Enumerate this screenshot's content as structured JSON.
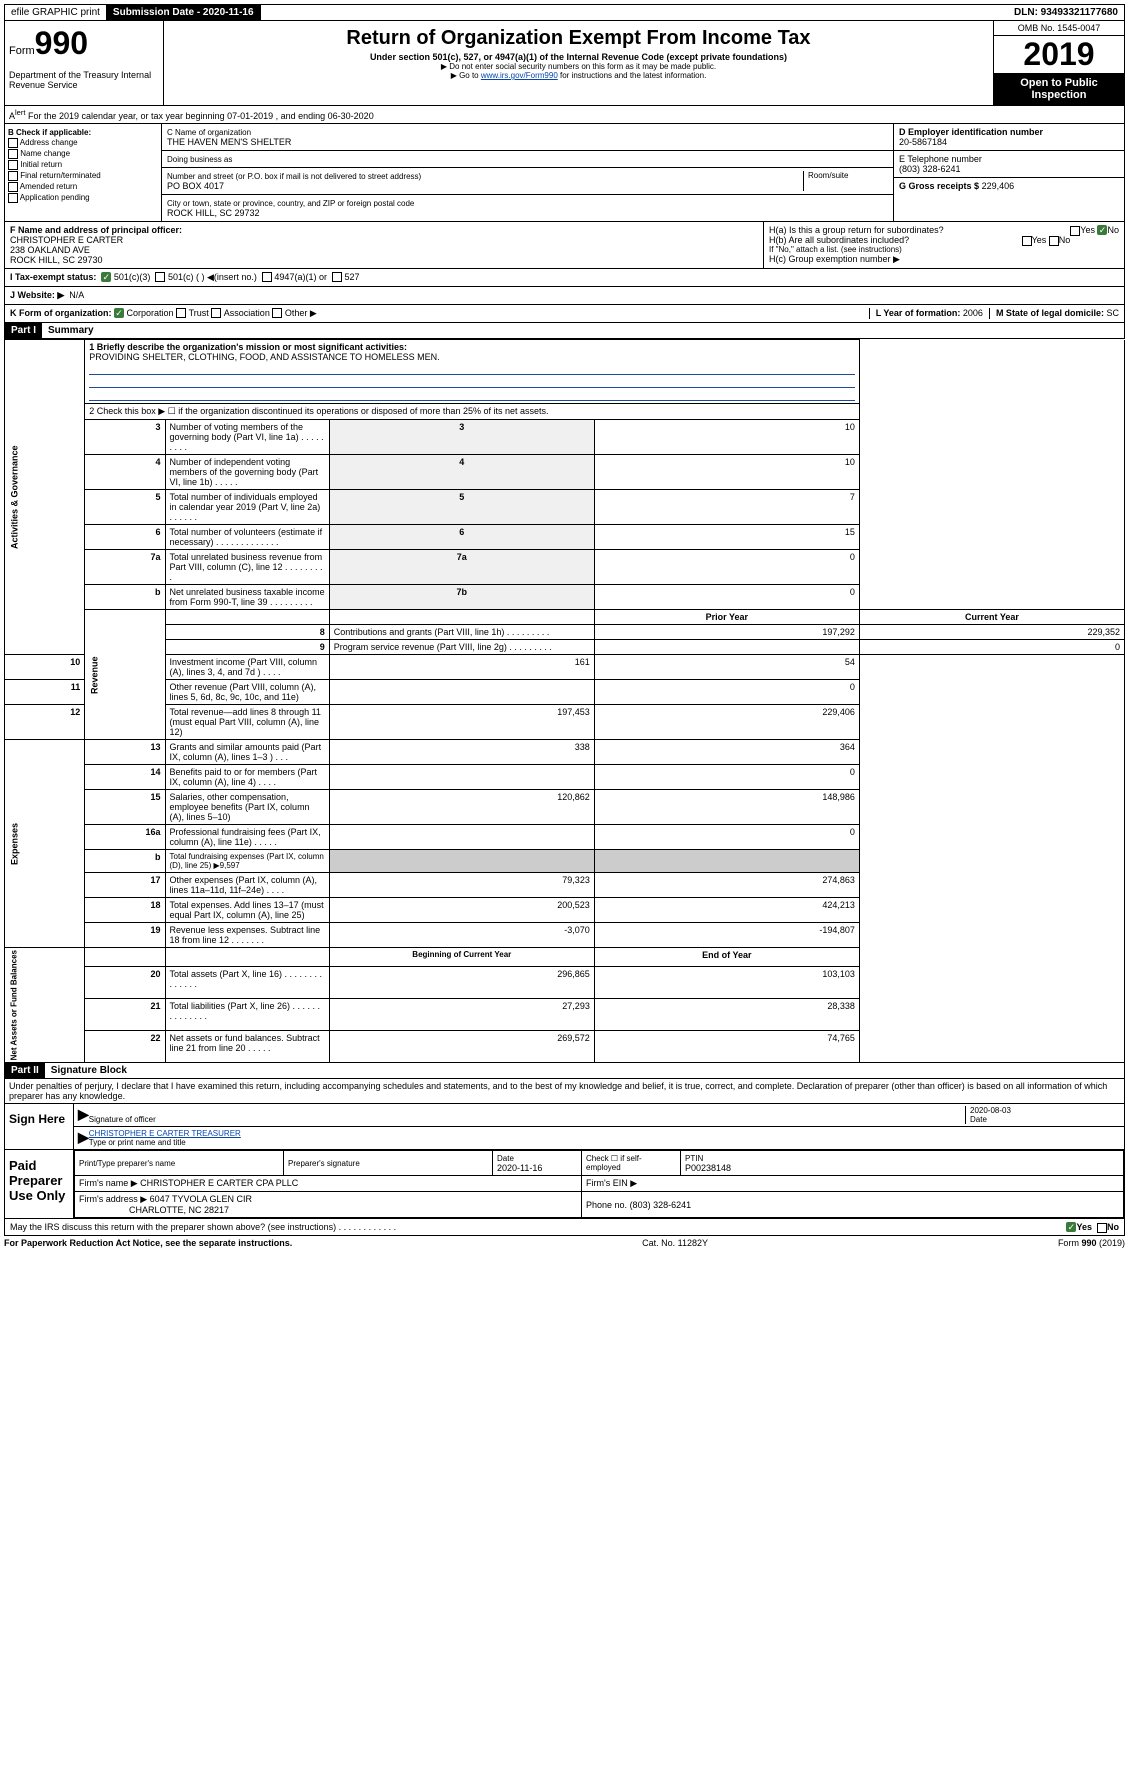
{
  "topbar": {
    "efile": "efile GRAPHIC print",
    "submission_label": "Submission Date - 2020-11-16",
    "dln": "DLN: 93493321177680"
  },
  "header": {
    "form_prefix": "Form",
    "form_num": "990",
    "dept": "Department of the Treasury Internal Revenue Service",
    "title": "Return of Organization Exempt From Income Tax",
    "subtitle": "Under section 501(c), 527, or 4947(a)(1) of the Internal Revenue Code (except private foundations)",
    "note1": "▶ Do not enter social security numbers on this form as it may be made public.",
    "note2_a": "▶ Go to ",
    "note2_link": "www.irs.gov/Form990",
    "note2_b": " for instructions and the latest information.",
    "omb": "OMB No. 1545-0047",
    "year": "2019",
    "open": "Open to Public Inspection"
  },
  "section_a": "For the 2019 calendar year, or tax year beginning 07-01-2019    , and ending 06-30-2020",
  "box_b": {
    "label": "B Check if applicable:",
    "items": [
      "Address change",
      "Name change",
      "Initial return",
      "Final return/terminated",
      "Amended return",
      "Application pending"
    ]
  },
  "box_c": {
    "name_label": "C Name of organization",
    "name": "THE HAVEN MEN'S SHELTER",
    "dba_label": "Doing business as",
    "addr_label": "Number and street (or P.O. box if mail is not delivered to street address)",
    "room_label": "Room/suite",
    "addr": "PO BOX 4017",
    "city_label": "City or town, state or province, country, and ZIP or foreign postal code",
    "city": "ROCK HILL, SC  29732"
  },
  "box_d": {
    "label": "D Employer identification number",
    "value": "20-5867184"
  },
  "box_e": {
    "label": "E Telephone number",
    "value": "(803) 328-6241"
  },
  "box_g": {
    "label": "G Gross receipts $",
    "value": "229,406"
  },
  "box_f": {
    "label": "F Name and address of principal officer:",
    "name": "CHRISTOPHER E CARTER",
    "addr1": "238 OAKLAND AVE",
    "addr2": "ROCK HILL, SC  29730"
  },
  "box_h": {
    "a": "H(a) Is this a group return for subordinates?",
    "b": "H(b) Are all subordinates included?",
    "note": "If \"No,\" attach a list. (see instructions)",
    "c": "H(c) Group exemption number ▶"
  },
  "box_i": {
    "label": "I    Tax-exempt status:",
    "opts": [
      "501(c)(3)",
      "501(c) (  ) ◀(insert no.)",
      "4947(a)(1) or",
      "527"
    ]
  },
  "box_j": {
    "label": "J   Website: ▶",
    "value": "N/A"
  },
  "box_k": "K Form of organization:",
  "k_opts": [
    "Corporation",
    "Trust",
    "Association",
    "Other ▶"
  ],
  "box_l": {
    "label": "L Year of formation:",
    "value": "2006"
  },
  "box_m": {
    "label": "M State of legal domicile:",
    "value": "SC"
  },
  "part1": {
    "header": "Part I",
    "title": "Summary",
    "line1_label": "1  Briefly describe the organization's mission or most significant activities:",
    "line1_value": "PROVIDING SHELTER, CLOTHING, FOOD, AND ASSISTANCE TO HOMELESS MEN.",
    "line2": "2   Check this box ▶ ☐ if the organization discontinued its operations or disposed of more than 25% of its net assets.",
    "rows_a": [
      {
        "n": "3",
        "d": "Number of voting members of the governing body (Part VI, line 1a)  .    .    .    .    .    .    .    .    .",
        "b": "3",
        "v": "10"
      },
      {
        "n": "4",
        "d": "Number of independent voting members of the governing body (Part VI, line 1b)   .    .    .    .    .",
        "b": "4",
        "v": "10"
      },
      {
        "n": "5",
        "d": "Total number of individuals employed in calendar year 2019 (Part V, line 2a)   .    .    .    .    .    .",
        "b": "5",
        "v": "7"
      },
      {
        "n": "6",
        "d": "Total number of volunteers (estimate if necessary)   .    .    .    .    .    .    .    .    .    .    .    .    .",
        "b": "6",
        "v": "15"
      },
      {
        "n": "7a",
        "d": "Total unrelated business revenue from Part VIII, column (C), line 12   .    .    .    .    .    .    .    .    .",
        "b": "7a",
        "v": "0"
      },
      {
        "n": "b",
        "d": "Net unrelated business taxable income from Form 990-T, line 39   .    .    .    .    .    .    .    .    .",
        "b": "7b",
        "v": "0"
      }
    ],
    "col_prior": "Prior Year",
    "col_current": "Current Year",
    "rows_rev": [
      {
        "n": "8",
        "d": "Contributions and grants (Part VIII, line 1h)   .    .    .    .    .    .    .    .    .",
        "p": "197,292",
        "c": "229,352"
      },
      {
        "n": "9",
        "d": "Program service revenue (Part VIII, line 2g)   .    .    .    .    .    .    .    .    .",
        "p": "",
        "c": "0"
      },
      {
        "n": "10",
        "d": "Investment income (Part VIII, column (A), lines 3, 4, and 7d )   .    .    .    .",
        "p": "161",
        "c": "54"
      },
      {
        "n": "11",
        "d": "Other revenue (Part VIII, column (A), lines 5, 6d, 8c, 9c, 10c, and 11e)",
        "p": "",
        "c": "0"
      },
      {
        "n": "12",
        "d": "Total revenue—add lines 8 through 11 (must equal Part VIII, column (A), line 12)",
        "p": "197,453",
        "c": "229,406"
      }
    ],
    "rows_exp": [
      {
        "n": "13",
        "d": "Grants and similar amounts paid (Part IX, column (A), lines 1–3 )   .    .    .",
        "p": "338",
        "c": "364"
      },
      {
        "n": "14",
        "d": "Benefits paid to or for members (Part IX, column (A), line 4)   .    .    .    .",
        "p": "",
        "c": "0"
      },
      {
        "n": "15",
        "d": "Salaries, other compensation, employee benefits (Part IX, column (A), lines 5–10)",
        "p": "120,862",
        "c": "148,986"
      },
      {
        "n": "16a",
        "d": "Professional fundraising fees (Part IX, column (A), line 11e)   .    .    .    .    .",
        "p": "",
        "c": "0"
      },
      {
        "n": "b",
        "d": "Total fundraising expenses (Part IX, column (D), line 25) ▶9,597",
        "p": null,
        "c": null
      },
      {
        "n": "17",
        "d": "Other expenses (Part IX, column (A), lines 11a–11d, 11f–24e)   .    .    .    .",
        "p": "79,323",
        "c": "274,863"
      },
      {
        "n": "18",
        "d": "Total expenses. Add lines 13–17 (must equal Part IX, column (A), line 25)",
        "p": "200,523",
        "c": "424,213"
      },
      {
        "n": "19",
        "d": "Revenue less expenses. Subtract line 18 from line 12   .    .    .    .    .    .    .",
        "p": "-3,070",
        "c": "-194,807"
      }
    ],
    "col_begin": "Beginning of Current Year",
    "col_end": "End of Year",
    "rows_net": [
      {
        "n": "20",
        "d": "Total assets (Part X, line 16)   .    .    .    .    .    .    .    .    .    .    .    .    .    .",
        "p": "296,865",
        "c": "103,103"
      },
      {
        "n": "21",
        "d": "Total liabilities (Part X, line 26)   .    .    .    .    .    .    .    .    .    .    .    .    .    .",
        "p": "27,293",
        "c": "28,338"
      },
      {
        "n": "22",
        "d": "Net assets or fund balances. Subtract line 21 from line 20   .    .    .    .    .",
        "p": "269,572",
        "c": "74,765"
      }
    ],
    "vert_gov": "Activities & Governance",
    "vert_rev": "Revenue",
    "vert_exp": "Expenses",
    "vert_net": "Net Assets or Fund Balances"
  },
  "part2": {
    "header": "Part II",
    "title": "Signature Block",
    "perjury": "Under penalties of perjury, I declare that I have examined this return, including accompanying schedules and statements, and to the best of my knowledge and belief, it is true, correct, and complete. Declaration of preparer (other than officer) is based on all information of which preparer has any knowledge.",
    "sign_here": "Sign Here",
    "sig_officer": "Signature of officer",
    "sig_date": "2020-08-03",
    "sig_date_label": "Date",
    "sig_name": "CHRISTOPHER E CARTER  TREASURER",
    "sig_name_label": "Type or print name and title",
    "paid": "Paid Preparer Use Only",
    "prep_name_label": "Print/Type preparer's name",
    "prep_sig_label": "Preparer's signature",
    "prep_date_label": "Date",
    "prep_date": "2020-11-16",
    "prep_check": "Check ☐ if self-employed",
    "ptin_label": "PTIN",
    "ptin": "P00238148",
    "firm_name_label": "Firm's name    ▶",
    "firm_name": "CHRISTOPHER E CARTER CPA PLLC",
    "firm_ein_label": "Firm's EIN ▶",
    "firm_addr_label": "Firm's address ▶",
    "firm_addr1": "6047 TYVOLA GLEN CIR",
    "firm_addr2": "CHARLOTTE, NC  28217",
    "phone_label": "Phone no.",
    "phone": "(803) 328-6241",
    "discuss": "May the IRS discuss this return with the preparer shown above? (see instructions)   .    .    .    .    .    .    .    .    .    .    .    .",
    "yes": "Yes",
    "no": "No"
  },
  "footer": {
    "left": "For Paperwork Reduction Act Notice, see the separate instructions.",
    "center": "Cat. No. 11282Y",
    "right": "Form 990 (2019)"
  }
}
